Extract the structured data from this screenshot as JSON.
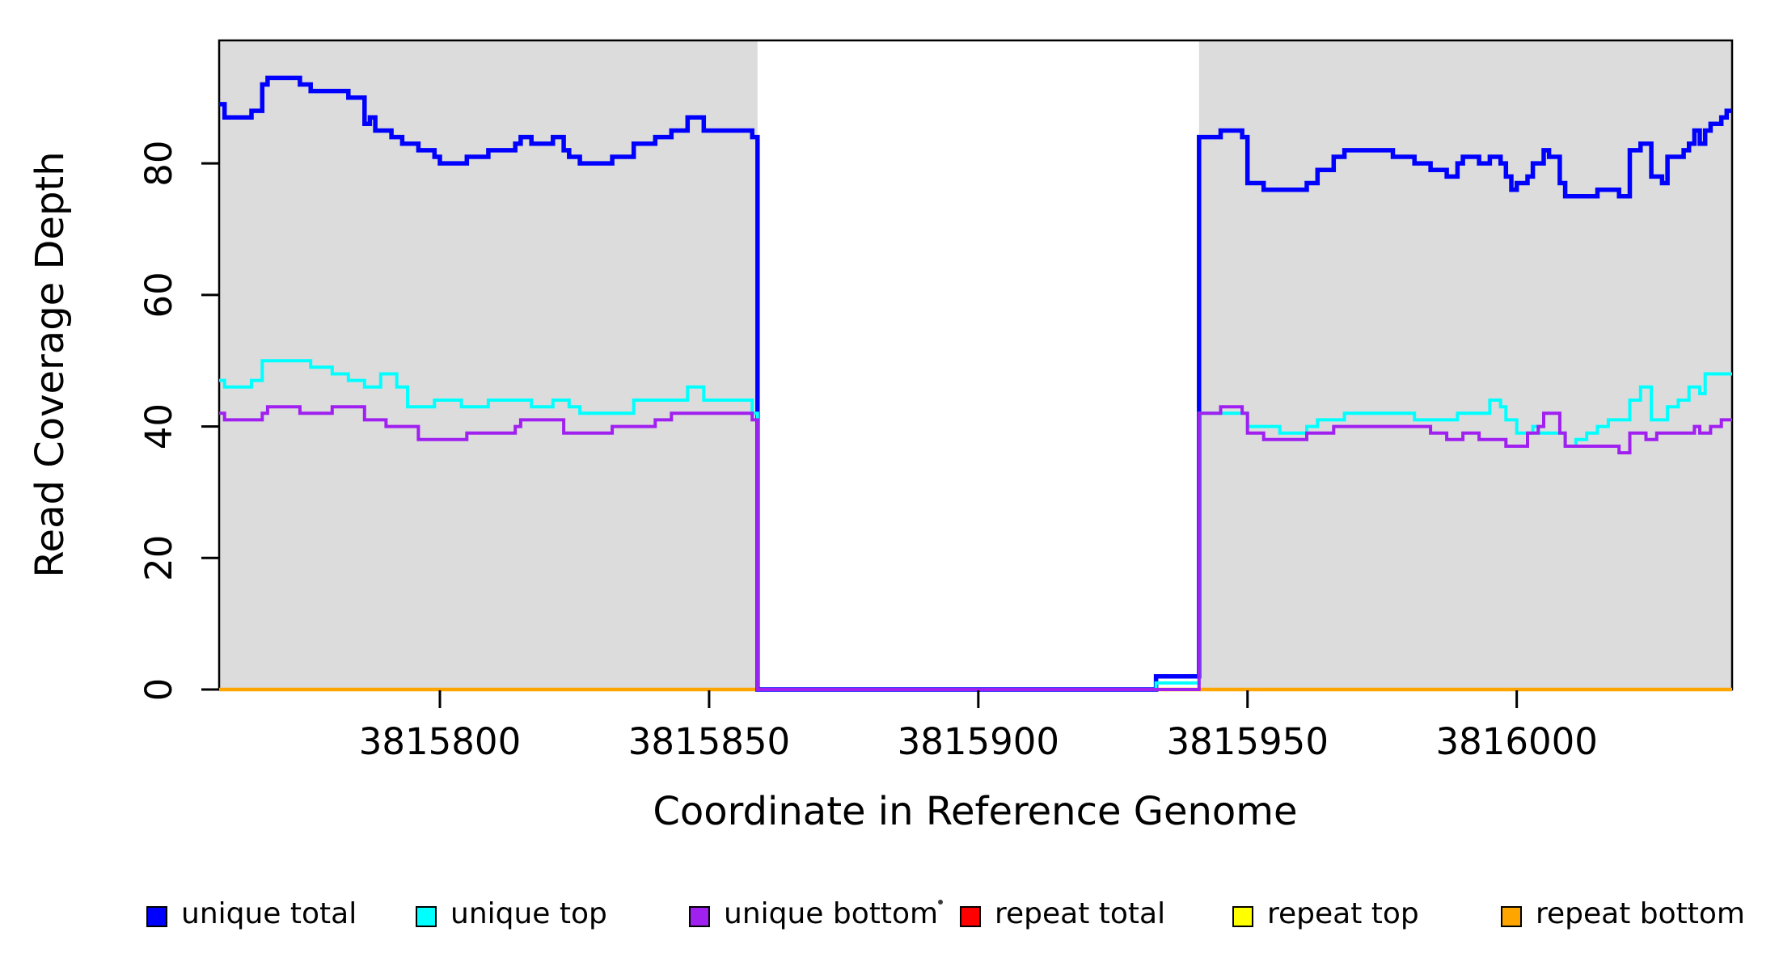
{
  "figure": {
    "type": "read-coverage-step-plot"
  },
  "legend": {
    "position": "bottom",
    "items": [
      {
        "label": "unique total",
        "color": "#0000FF"
      },
      {
        "label": "unique top",
        "color": "#00FFFF"
      },
      {
        "label": "unique bottom",
        "color": "#A020F0"
      },
      {
        "label": "repeat total",
        "color": "#FF0000"
      },
      {
        "label": "repeat top",
        "color": "#FFFF00"
      },
      {
        "label": "repeat bottom",
        "color": "#FFA500"
      }
    ]
  },
  "chart_data": {
    "type": "line",
    "step": true,
    "title": "",
    "xlabel": "Coordinate in Reference Genome",
    "ylabel": "Read Coverage Depth",
    "xlim": [
      3815759,
      3816040
    ],
    "ylim": [
      0,
      98.7
    ],
    "grid": false,
    "legend_position": "bottom",
    "x_ticks": [
      3815800,
      3815850,
      3815900,
      3815950,
      3816000
    ],
    "y_ticks": [
      0,
      20,
      40,
      60,
      80
    ],
    "background_color": "#DCDCDC",
    "background_regions": [
      {
        "x0": 3815759,
        "x1": 3815859
      },
      {
        "x0": 3815941,
        "x1": 3816040
      }
    ],
    "gap_region": {
      "x0": 3815859,
      "x1": 3815941
    },
    "series": [
      {
        "name": "unique total",
        "color": "#0000FF",
        "width": 5.5,
        "steps": [
          [
            3815759,
            89
          ],
          [
            3815760,
            87
          ],
          [
            3815765,
            88
          ],
          [
            3815767,
            92
          ],
          [
            3815768,
            93
          ],
          [
            3815774,
            92
          ],
          [
            3815776,
            91
          ],
          [
            3815783,
            90
          ],
          [
            3815786,
            86
          ],
          [
            3815787,
            87
          ],
          [
            3815788,
            85
          ],
          [
            3815791,
            84
          ],
          [
            3815793,
            83
          ],
          [
            3815796,
            82
          ],
          [
            3815799,
            81
          ],
          [
            3815800,
            80
          ],
          [
            3815805,
            81
          ],
          [
            3815809,
            82
          ],
          [
            3815814,
            83
          ],
          [
            3815815,
            84
          ],
          [
            3815817,
            83
          ],
          [
            3815821,
            84
          ],
          [
            3815823,
            82
          ],
          [
            3815824,
            81
          ],
          [
            3815826,
            80
          ],
          [
            3815832,
            81
          ],
          [
            3815836,
            83
          ],
          [
            3815840,
            84
          ],
          [
            3815843,
            85
          ],
          [
            3815846,
            87
          ],
          [
            3815849,
            85
          ],
          [
            3815858,
            84
          ],
          [
            3815859,
            0
          ],
          [
            3815933,
            2
          ],
          [
            3815941,
            84
          ],
          [
            3815945,
            85
          ],
          [
            3815949,
            84
          ],
          [
            3815950,
            77
          ],
          [
            3815953,
            76
          ],
          [
            3815961,
            77
          ],
          [
            3815963,
            79
          ],
          [
            3815966,
            81
          ],
          [
            3815968,
            82
          ],
          [
            3815977,
            81
          ],
          [
            3815981,
            80
          ],
          [
            3815984,
            79
          ],
          [
            3815987,
            78
          ],
          [
            3815989,
            80
          ],
          [
            3815990,
            81
          ],
          [
            3815993,
            80
          ],
          [
            3815995,
            81
          ],
          [
            3815997,
            80
          ],
          [
            3815998,
            78
          ],
          [
            3815999,
            76
          ],
          [
            3816000,
            77
          ],
          [
            3816002,
            78
          ],
          [
            3816003,
            80
          ],
          [
            3816005,
            82
          ],
          [
            3816006,
            81
          ],
          [
            3816008,
            77
          ],
          [
            3816009,
            75
          ],
          [
            3816015,
            76
          ],
          [
            3816019,
            75
          ],
          [
            3816021,
            82
          ],
          [
            3816023,
            83
          ],
          [
            3816025,
            78
          ],
          [
            3816027,
            77
          ],
          [
            3816028,
            81
          ],
          [
            3816031,
            82
          ],
          [
            3816032,
            83
          ],
          [
            3816033,
            85
          ],
          [
            3816034,
            83
          ],
          [
            3816035,
            85
          ],
          [
            3816036,
            86
          ],
          [
            3816038,
            87
          ],
          [
            3816039,
            88
          ]
        ]
      },
      {
        "name": "unique top",
        "color": "#00FFFF",
        "width": 4,
        "steps": [
          [
            3815759,
            47
          ],
          [
            3815760,
            46
          ],
          [
            3815765,
            47
          ],
          [
            3815767,
            50
          ],
          [
            3815776,
            49
          ],
          [
            3815780,
            48
          ],
          [
            3815783,
            47
          ],
          [
            3815786,
            46
          ],
          [
            3815789,
            48
          ],
          [
            3815792,
            46
          ],
          [
            3815794,
            43
          ],
          [
            3815799,
            44
          ],
          [
            3815804,
            43
          ],
          [
            3815809,
            44
          ],
          [
            3815817,
            43
          ],
          [
            3815821,
            44
          ],
          [
            3815824,
            43
          ],
          [
            3815826,
            42
          ],
          [
            3815836,
            44
          ],
          [
            3815846,
            46
          ],
          [
            3815849,
            44
          ],
          [
            3815858,
            42
          ],
          [
            3815859,
            0
          ],
          [
            3815933,
            1
          ],
          [
            3815941,
            42
          ],
          [
            3815950,
            40
          ],
          [
            3815956,
            39
          ],
          [
            3815961,
            40
          ],
          [
            3815963,
            41
          ],
          [
            3815968,
            42
          ],
          [
            3815981,
            41
          ],
          [
            3815989,
            42
          ],
          [
            3815995,
            44
          ],
          [
            3815997,
            43
          ],
          [
            3815998,
            41
          ],
          [
            3816000,
            39
          ],
          [
            3816003,
            40
          ],
          [
            3816004,
            39
          ],
          [
            3816009,
            37
          ],
          [
            3816011,
            38
          ],
          [
            3816013,
            39
          ],
          [
            3816015,
            40
          ],
          [
            3816017,
            41
          ],
          [
            3816021,
            44
          ],
          [
            3816023,
            46
          ],
          [
            3816025,
            41
          ],
          [
            3816028,
            43
          ],
          [
            3816030,
            44
          ],
          [
            3816032,
            46
          ],
          [
            3816034,
            45
          ],
          [
            3816035,
            48
          ]
        ]
      },
      {
        "name": "unique bottom",
        "color": "#A020F0",
        "width": 4,
        "steps": [
          [
            3815759,
            42
          ],
          [
            3815760,
            41
          ],
          [
            3815767,
            42
          ],
          [
            3815768,
            43
          ],
          [
            3815774,
            42
          ],
          [
            3815780,
            43
          ],
          [
            3815786,
            41
          ],
          [
            3815790,
            40
          ],
          [
            3815796,
            38
          ],
          [
            3815805,
            39
          ],
          [
            3815814,
            40
          ],
          [
            3815815,
            41
          ],
          [
            3815823,
            39
          ],
          [
            3815832,
            40
          ],
          [
            3815840,
            41
          ],
          [
            3815843,
            42
          ],
          [
            3815858,
            41
          ],
          [
            3815859,
            0
          ],
          [
            3815941,
            42
          ],
          [
            3815945,
            43
          ],
          [
            3815949,
            42
          ],
          [
            3815950,
            39
          ],
          [
            3815953,
            38
          ],
          [
            3815961,
            39
          ],
          [
            3815966,
            40
          ],
          [
            3815984,
            39
          ],
          [
            3815987,
            38
          ],
          [
            3815990,
            39
          ],
          [
            3815993,
            38
          ],
          [
            3815998,
            37
          ],
          [
            3816002,
            39
          ],
          [
            3816004,
            40
          ],
          [
            3816005,
            42
          ],
          [
            3816008,
            39
          ],
          [
            3816009,
            37
          ],
          [
            3816019,
            36
          ],
          [
            3816021,
            39
          ],
          [
            3816024,
            38
          ],
          [
            3816026,
            39
          ],
          [
            3816033,
            40
          ],
          [
            3816034,
            39
          ],
          [
            3816036,
            40
          ],
          [
            3816038,
            41
          ]
        ]
      },
      {
        "name": "repeat total",
        "color": "#FF0000",
        "width": 3,
        "steps": [
          [
            3815759,
            0
          ]
        ]
      },
      {
        "name": "repeat top",
        "color": "#FFFF00",
        "width": 3,
        "steps": [
          [
            3815759,
            0
          ]
        ]
      },
      {
        "name": "repeat bottom",
        "color": "#FFA500",
        "width": 4.5,
        "steps": [
          [
            3815759,
            0
          ]
        ]
      }
    ]
  }
}
